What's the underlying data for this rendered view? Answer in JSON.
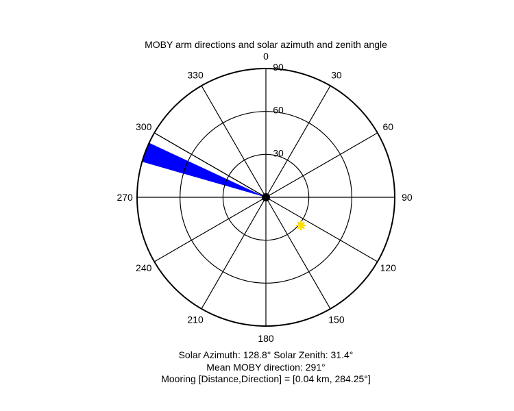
{
  "chart_data": {
    "type": "polar",
    "title": "MOBY arm directions and solar azimuth and zenith angle",
    "theta_ticks": [
      "0",
      "30",
      "60",
      "90",
      "120",
      "150",
      "180",
      "210",
      "240",
      "270",
      "300",
      "330"
    ],
    "radial_ticks": [
      "30",
      "60",
      "90"
    ],
    "rlim": [
      0,
      90
    ],
    "theta_zero": "top",
    "theta_direction": "clockwise",
    "series": [
      {
        "type": "wedge",
        "theta_range_deg": [
          286,
          295
        ],
        "r": 90,
        "color": "#0000ff"
      },
      {
        "type": "line",
        "theta_deg": 300,
        "r": 90,
        "color": "#000000"
      },
      {
        "type": "marker",
        "theta_deg": 128.8,
        "r": 31.4,
        "color": "#ffdd00",
        "marker": "asterisk"
      }
    ],
    "annotations": {
      "solar_line": "Solar Azimuth: 128.8°   Solar Zenith: 31.4°",
      "moby_line": "Mean MOBY direction: 291°",
      "mooring_line": "Mooring [Distance,Direction] = [0.04 km, 284.25°]"
    }
  }
}
